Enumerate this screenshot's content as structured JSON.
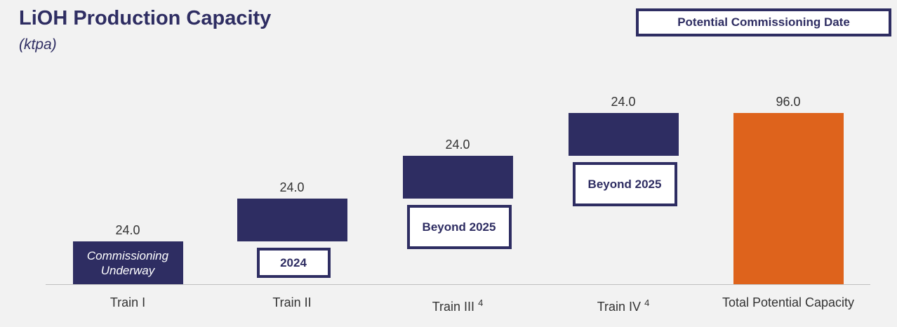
{
  "chart_data": {
    "type": "waterfall",
    "title": "LiOH Production Capacity",
    "subtitle": "(ktpa)",
    "legend": "Potential Commissioning Date",
    "categories": [
      "Train I",
      "Train II",
      "Train III",
      "Train IV",
      "Total Potential Capacity"
    ],
    "footnotes": [
      null,
      null,
      "4",
      "4",
      null
    ],
    "values": [
      24,
      24,
      24,
      24,
      96
    ],
    "value_labels": [
      "24.0",
      "24.0",
      "24.0",
      "24.0",
      "96.0"
    ],
    "totals": [
      false,
      false,
      false,
      false,
      true
    ],
    "colors": [
      "#2e2d62",
      "#2e2d62",
      "#2e2d62",
      "#2e2d62",
      "#de631c"
    ],
    "annotations": [
      "Commissioning Underway",
      "2024",
      "Beyond 2025",
      "Beyond 2025",
      null
    ]
  }
}
